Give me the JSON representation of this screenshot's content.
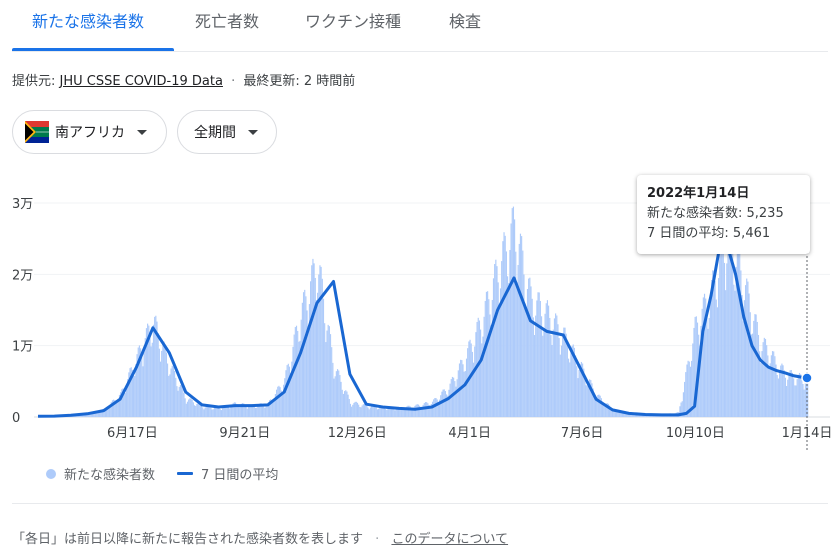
{
  "tabs": [
    {
      "label": "新たな感染者数"
    },
    {
      "label": "死亡者数"
    },
    {
      "label": "ワクチン接種"
    },
    {
      "label": "検査"
    }
  ],
  "source": {
    "prefix": "提供元:",
    "link": "JHU CSSE COVID-19 Data",
    "separator": "·",
    "updated": "最終更新: 2 時間前"
  },
  "filters": {
    "region": "南アフリカ",
    "period": "全期間"
  },
  "tooltip": {
    "date": "2022年1月14日",
    "new_cases": "新たな感染者数: 5,235",
    "avg": "7 日間の平均: 5,461"
  },
  "legend": {
    "bars": "新たな感染者数",
    "line": "7 日間の平均"
  },
  "footer": {
    "note": "「各日」は前日以降に新たに報告された感染者数を表します",
    "separator": "·",
    "link": "このデータについて"
  },
  "colors": {
    "accent": "#1a73e8",
    "bars": "#aecbfa",
    "line": "#1967d2"
  },
  "chart_data": {
    "type": "bar",
    "ylim": [
      0,
      30000
    ],
    "y_ticks": [
      "0",
      "1万",
      "2万",
      "3万"
    ],
    "x_ticks": [
      "6月17日",
      "9月21日",
      "12月26日",
      "4月1日",
      "7月6日",
      "10月10日",
      "1月14日"
    ],
    "x_tick_weeks": [
      11.5,
      25.2,
      38.9,
      52.6,
      66.3,
      80.1,
      93.7
    ],
    "highlight_week": 93.7,
    "series": [
      {
        "name": "新たな感染者数",
        "note": "daily new cases, sampled every 2 weeks",
        "weeks": [
          0,
          2,
          4,
          6,
          8,
          10,
          12,
          14,
          16,
          18,
          20,
          22,
          24,
          26,
          28,
          30,
          32,
          34,
          36,
          38,
          40,
          42,
          44,
          46,
          48,
          50,
          52,
          54,
          56,
          58,
          60,
          62,
          64,
          66,
          68,
          70,
          72,
          74,
          76,
          78,
          80,
          82,
          84,
          86,
          87,
          88,
          89,
          90,
          91,
          92,
          93,
          93.7
        ],
        "values": [
          100,
          150,
          300,
          500,
          1000,
          3000,
          8000,
          13000,
          7000,
          2500,
          1500,
          1200,
          1800,
          1500,
          1800,
          5000,
          14000,
          21000,
          7000,
          2000,
          1500,
          1300,
          1200,
          1500,
          2000,
          4000,
          8000,
          13000,
          20000,
          26000,
          16000,
          14000,
          11000,
          7000,
          3000,
          1000,
          500,
          300,
          300,
          600,
          12000,
          17000,
          25000,
          18000,
          14000,
          10000,
          9000,
          7000,
          6000,
          5500,
          5200,
          5235
        ]
      },
      {
        "name": "7 日間の平均",
        "weeks": [
          0,
          2,
          4,
          6,
          8,
          10,
          12,
          14,
          16,
          18,
          20,
          22,
          24,
          26,
          28,
          30,
          32,
          34,
          36,
          38,
          40,
          42,
          44,
          46,
          48,
          50,
          52,
          54,
          56,
          58,
          60,
          62,
          64,
          66,
          68,
          70,
          72,
          74,
          76,
          78,
          79,
          80,
          81,
          82,
          83,
          84,
          85,
          86,
          87,
          88,
          89,
          90,
          91,
          92,
          93,
          93.7
        ],
        "values": [
          100,
          120,
          250,
          450,
          900,
          2500,
          7000,
          12500,
          9000,
          3500,
          1700,
          1400,
          1600,
          1600,
          1700,
          3500,
          9000,
          16000,
          19000,
          6000,
          1800,
          1400,
          1200,
          1100,
          1400,
          2600,
          4500,
          8000,
          15000,
          19500,
          13500,
          12000,
          11500,
          7000,
          2500,
          1000,
          500,
          350,
          300,
          300,
          500,
          1500,
          12000,
          17000,
          23500,
          24000,
          20000,
          14000,
          10000,
          8000,
          7000,
          6500,
          6200,
          5800,
          5600,
          5461
        ]
      }
    ]
  }
}
